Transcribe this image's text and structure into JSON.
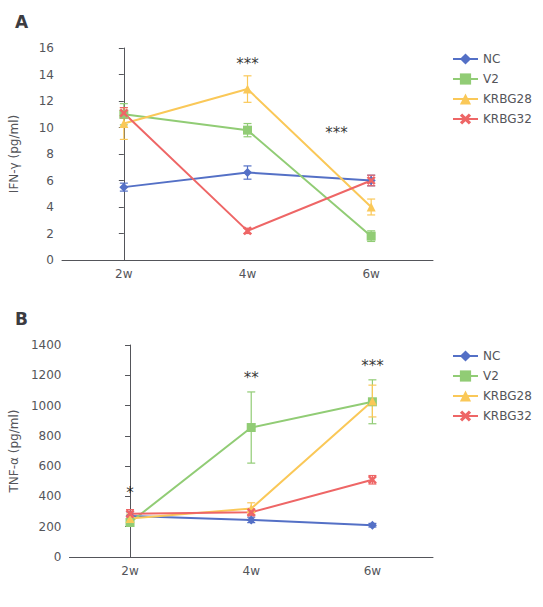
{
  "chart_data": [
    {
      "type": "line",
      "title": "A",
      "ylabel": "IFN-γ (pg/ml)",
      "categories": [
        "2w",
        "4w",
        "6w"
      ],
      "series": [
        {
          "name": "NC",
          "marker": "diamond",
          "values": [
            5.5,
            6.6,
            6.0
          ],
          "errors": [
            0.3,
            0.5,
            0.4
          ]
        },
        {
          "name": "V2",
          "marker": "square",
          "values": [
            11.0,
            9.8,
            1.8
          ],
          "errors": [
            0.8,
            0.5,
            0.4
          ]
        },
        {
          "name": "KRBG28",
          "marker": "triangle",
          "values": [
            10.3,
            12.9,
            4.0
          ],
          "errors": [
            1.2,
            1.0,
            0.6
          ]
        },
        {
          "name": "KRBG32",
          "marker": "x",
          "values": [
            11.1,
            2.2,
            6.0
          ],
          "errors": [
            0.4,
            0.2,
            0.4
          ]
        }
      ],
      "ylim": [
        0,
        16
      ],
      "yticks": [
        0,
        2,
        4,
        6,
        8,
        10,
        12,
        14,
        16
      ],
      "grid": false,
      "legend": "right",
      "annotations": [
        {
          "text": "***",
          "x": 1,
          "y": 14.2
        },
        {
          "text": "***",
          "x": 1.72,
          "y": 9.0
        }
      ]
    },
    {
      "type": "line",
      "title": "B",
      "ylabel": "TNF-α (pg/ml)",
      "categories": [
        "2w",
        "4w",
        "6w"
      ],
      "series": [
        {
          "name": "NC",
          "marker": "diamond",
          "values": [
            270,
            245,
            210
          ],
          "errors": [
            28,
            18,
            12
          ]
        },
        {
          "name": "V2",
          "marker": "square",
          "values": [
            228,
            855,
            1025
          ],
          "errors": [
            22,
            235,
            145
          ]
        },
        {
          "name": "KRBG28",
          "marker": "triangle",
          "values": [
            255,
            320,
            1030
          ],
          "errors": [
            28,
            38,
            105
          ]
        },
        {
          "name": "KRBG32",
          "marker": "x",
          "values": [
            285,
            295,
            510
          ],
          "errors": [
            28,
            22,
            28
          ]
        }
      ],
      "ylim": [
        0,
        1400
      ],
      "yticks": [
        0,
        200,
        400,
        600,
        800,
        1000,
        1200,
        1400
      ],
      "grid": false,
      "legend": "right",
      "annotations": [
        {
          "text": "*",
          "x": 0,
          "y": 370
        },
        {
          "text": "**",
          "x": 1,
          "y": 1135
        },
        {
          "text": "***",
          "x": 2,
          "y": 1210
        }
      ]
    }
  ]
}
